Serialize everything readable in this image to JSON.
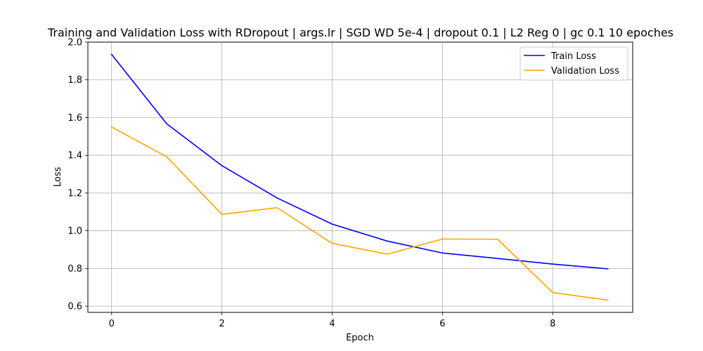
{
  "chart_data": {
    "type": "line",
    "title": "Training and Validation Loss with RDropout | args.lr | SGD WD 5e-4 | dropout 0.1 | L2 Reg 0 | gc 0.1 10 epoches",
    "xlabel": "Epoch",
    "ylabel": "Loss",
    "x": [
      0,
      1,
      2,
      3,
      4,
      5,
      6,
      7,
      8,
      9
    ],
    "xlim": [
      -0.43,
      9.45
    ],
    "ylim": [
      0.567,
      2.0
    ],
    "xticks": [
      0,
      2,
      4,
      6,
      8
    ],
    "xtick_labels": [
      "0",
      "2",
      "4",
      "6",
      "8"
    ],
    "yticks": [
      0.6,
      0.8,
      1.0,
      1.2,
      1.4,
      1.6,
      1.8,
      2.0
    ],
    "ytick_labels": [
      "0.6",
      "0.8",
      "1.0",
      "1.2",
      "1.4",
      "1.6",
      "1.8",
      "2.0"
    ],
    "grid": true,
    "legend_position": "top-right",
    "series": [
      {
        "name": "Train Loss",
        "color": "#0000ff",
        "values": [
          1.935,
          1.567,
          1.345,
          1.174,
          1.035,
          0.945,
          0.882,
          0.853,
          0.823,
          0.798
        ]
      },
      {
        "name": "Validation Loss",
        "color": "#ffa500",
        "values": [
          1.55,
          1.392,
          1.087,
          1.122,
          0.933,
          0.876,
          0.956,
          0.955,
          0.672,
          0.632
        ]
      }
    ]
  }
}
